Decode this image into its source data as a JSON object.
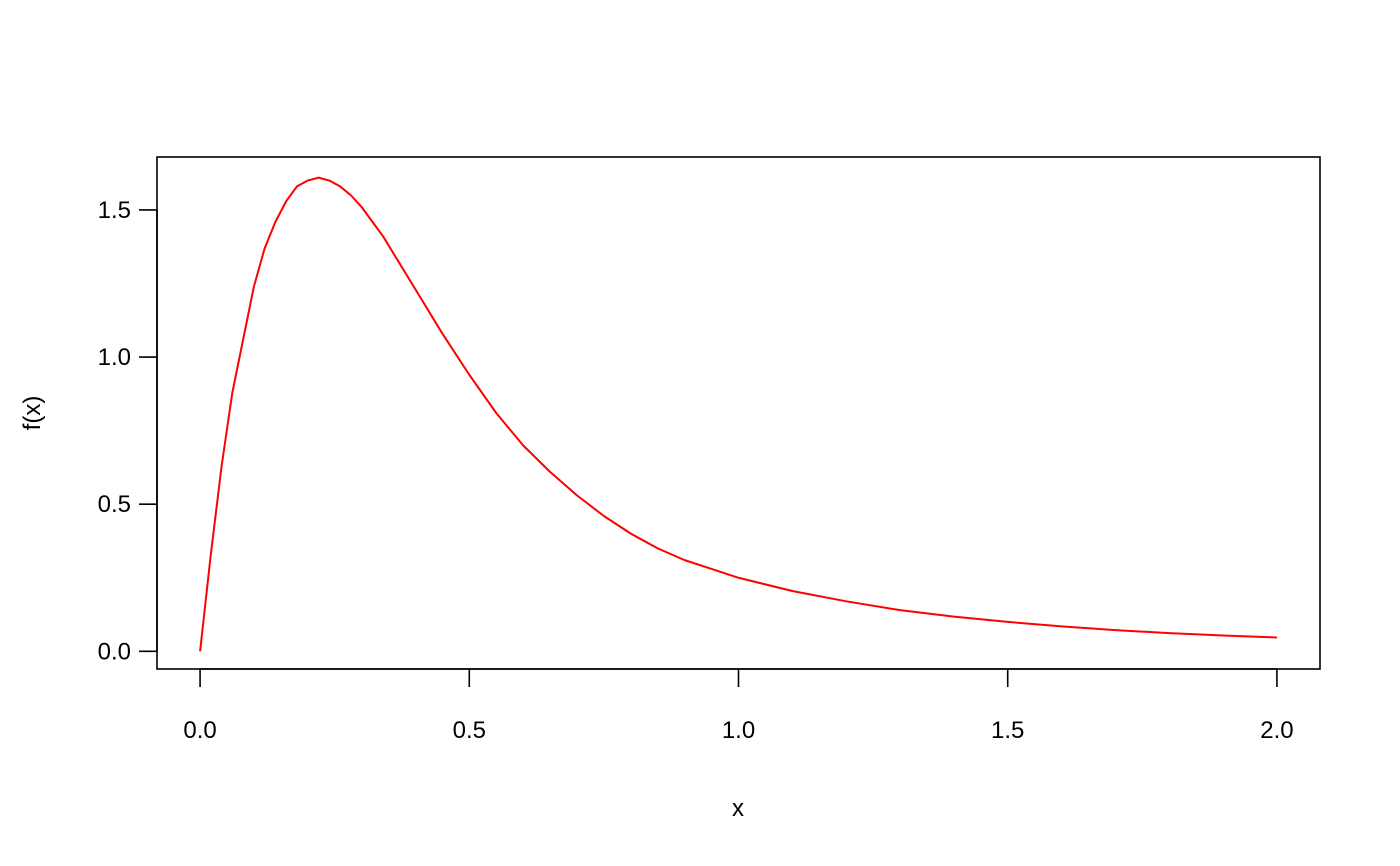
{
  "chart_data": {
    "type": "line",
    "title": "",
    "xlabel": "x",
    "ylabel": "f(x)",
    "xlim": [
      -0.08,
      2.08
    ],
    "ylim": [
      -0.06,
      1.68
    ],
    "x_ticks": [
      0.0,
      0.5,
      1.0,
      1.5,
      2.0
    ],
    "x_tick_labels": [
      "0.0",
      "0.5",
      "1.0",
      "1.5",
      "2.0"
    ],
    "y_ticks": [
      0.0,
      0.5,
      1.0,
      1.5
    ],
    "y_tick_labels": [
      "0.0",
      "0.5",
      "1.0",
      "1.5"
    ],
    "grid": false,
    "legend": "none",
    "series": [
      {
        "color": "#ff0000",
        "x": [
          0.0,
          0.02,
          0.04,
          0.06,
          0.08,
          0.1,
          0.12,
          0.14,
          0.16,
          0.18,
          0.2,
          0.22,
          0.24,
          0.26,
          0.28,
          0.3,
          0.32,
          0.34,
          0.36,
          0.38,
          0.4,
          0.45,
          0.5,
          0.55,
          0.6,
          0.65,
          0.7,
          0.75,
          0.8,
          0.85,
          0.9,
          0.95,
          1.0,
          1.1,
          1.2,
          1.3,
          1.4,
          1.5,
          1.6,
          1.7,
          1.8,
          1.9,
          2.0
        ],
        "y": [
          0.0,
          0.33,
          0.63,
          0.88,
          1.06,
          1.24,
          1.37,
          1.46,
          1.53,
          1.58,
          1.6,
          1.61,
          1.6,
          1.58,
          1.55,
          1.51,
          1.46,
          1.41,
          1.35,
          1.29,
          1.23,
          1.08,
          0.94,
          0.81,
          0.7,
          0.61,
          0.53,
          0.46,
          0.4,
          0.35,
          0.31,
          0.28,
          0.25,
          0.205,
          0.17,
          0.14,
          0.118,
          0.1,
          0.085,
          0.072,
          0.062,
          0.054,
          0.047
        ]
      }
    ]
  }
}
